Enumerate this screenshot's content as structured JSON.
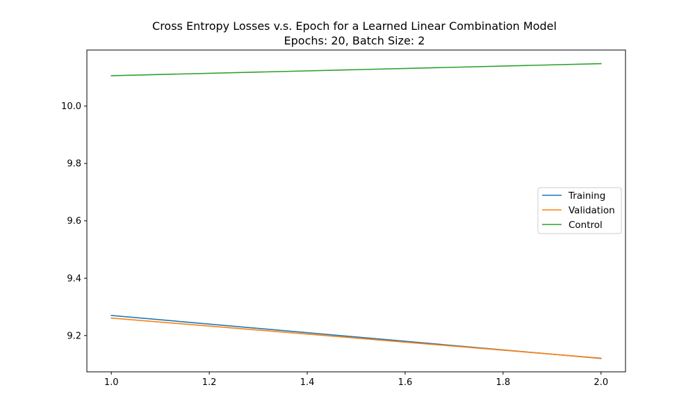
{
  "chart_data": {
    "type": "line",
    "title": "Cross Entropy Losses v.s. Epoch for a Learned Linear Combination Model",
    "subtitle": "Epochs: 20, Batch Size: 2",
    "xlabel": "",
    "ylabel": "",
    "xlim": [
      0.95,
      2.05
    ],
    "ylim": [
      9.0735,
      10.1955
    ],
    "x_ticks": [
      1.0,
      1.2,
      1.4,
      1.6,
      1.8,
      2.0
    ],
    "x_tick_labels": [
      "1.0",
      "1.2",
      "1.4",
      "1.6",
      "1.8",
      "2.0"
    ],
    "y_ticks": [
      9.2,
      9.4,
      9.6,
      9.8,
      10.0
    ],
    "y_tick_labels": [
      "9.2",
      "9.4",
      "9.6",
      "9.8",
      "10.0"
    ],
    "grid": false,
    "legend_position": "center-right",
    "x": [
      1.0,
      2.0
    ],
    "series": [
      {
        "name": "Training",
        "values": [
          9.27,
          9.12
        ],
        "color": "#1f77b4"
      },
      {
        "name": "Validation",
        "values": [
          9.261,
          9.121
        ],
        "color": "#ff7f0e"
      },
      {
        "name": "Control",
        "values": [
          10.106,
          10.148
        ],
        "color": "#2ca02c"
      }
    ]
  }
}
